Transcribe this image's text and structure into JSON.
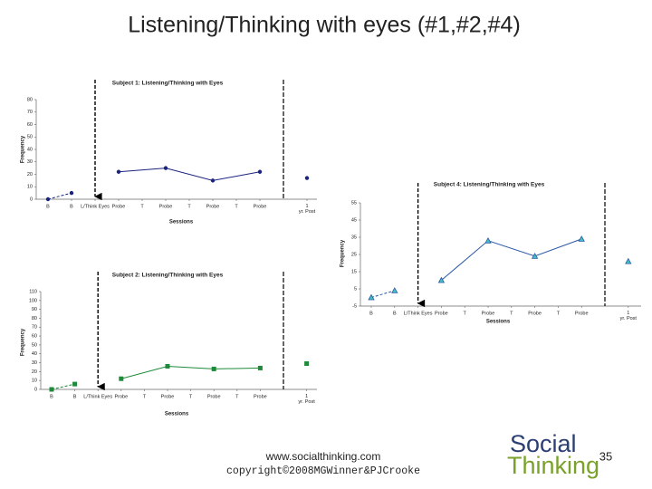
{
  "title": "Listening/Thinking with eyes (#1,#2,#4)",
  "footer": {
    "website": "www.socialthinking.com",
    "copyright": "copyright©2008MGWinner&PJCrooke",
    "page": "35",
    "logo_top": "Social",
    "logo_bottom": "Thinking"
  },
  "chart_data": [
    {
      "type": "line",
      "title": "Subject 1: Listening/Thinking with Eyes",
      "x_label": "Sessions",
      "y_label": "Frequency",
      "xlim": [
        1,
        12
      ],
      "ylim": [
        0,
        80
      ],
      "yticks": [
        0,
        10,
        20,
        30,
        40,
        50,
        60,
        70,
        80
      ],
      "xticks": [
        {
          "value": 1,
          "label": "B"
        },
        {
          "value": 2,
          "label": "B"
        },
        {
          "value": 3,
          "label": "L/Think Eyes"
        },
        {
          "value": 4,
          "label": "Probe"
        },
        {
          "value": 5,
          "label": "T"
        },
        {
          "value": 6,
          "label": "Probe"
        },
        {
          "value": 7,
          "label": "T"
        },
        {
          "value": 8,
          "label": "Probe"
        },
        {
          "value": 9,
          "label": "T"
        },
        {
          "value": 10,
          "label": "Probe"
        },
        {
          "value": 12,
          "label": "1 yr. Post"
        }
      ],
      "arrow_x": 3,
      "phase_line_x": 11,
      "marker": "circle",
      "series": [
        {
          "color": "#1a237e",
          "dashed": true,
          "x": [
            1,
            2
          ],
          "values": [
            0,
            5
          ]
        },
        {
          "color": "#1a237e",
          "dashed": false,
          "x": [
            4,
            6,
            8,
            10
          ],
          "values": [
            22,
            25,
            15,
            22
          ]
        },
        {
          "color": "#1a237e",
          "dashed": false,
          "x": [
            12
          ],
          "values": [
            17
          ]
        }
      ]
    },
    {
      "type": "line",
      "title": "Subject 4: Listening/Thinking with Eyes",
      "x_label": "Sessions",
      "y_label": "Frequency",
      "xlim": [
        1,
        12
      ],
      "ylim": [
        -5,
        55
      ],
      "yticks": [
        -5,
        5,
        15,
        25,
        35,
        45,
        55
      ],
      "xticks": [
        {
          "value": 1,
          "label": "B"
        },
        {
          "value": 2,
          "label": "B"
        },
        {
          "value": 3,
          "label": "L/Think Eyes"
        },
        {
          "value": 4,
          "label": "Probe"
        },
        {
          "value": 5,
          "label": "T"
        },
        {
          "value": 6,
          "label": "Probe"
        },
        {
          "value": 7,
          "label": "T"
        },
        {
          "value": 8,
          "label": "Probe"
        },
        {
          "value": 9,
          "label": "T"
        },
        {
          "value": 10,
          "label": "Probe"
        },
        {
          "value": 12,
          "label": "1 yr. Post"
        }
      ],
      "arrow_x": 3,
      "phase_line_x": 11,
      "marker": "triangle",
      "series": [
        {
          "color": "#2a58a8",
          "dashed": true,
          "x": [
            1,
            2
          ],
          "values": [
            0,
            4
          ]
        },
        {
          "color": "#2a58a8",
          "dashed": false,
          "x": [
            4,
            6,
            8,
            10
          ],
          "values": [
            10,
            33,
            24,
            34
          ]
        },
        {
          "color": "#2a58a8",
          "dashed": false,
          "x": [
            12
          ],
          "values": [
            21
          ]
        }
      ]
    },
    {
      "type": "line",
      "title": "Subject 2: Listening/Thinking with Eyes",
      "x_label": "Sessions",
      "y_label": "Frequency",
      "xlim": [
        1,
        12
      ],
      "ylim": [
        0,
        110
      ],
      "yticks": [
        0,
        10,
        20,
        30,
        40,
        50,
        60,
        70,
        80,
        90,
        100,
        110
      ],
      "xticks": [
        {
          "value": 1,
          "label": "B"
        },
        {
          "value": 2,
          "label": "B"
        },
        {
          "value": 3,
          "label": "L/Think Eyes"
        },
        {
          "value": 4,
          "label": "Probe"
        },
        {
          "value": 5,
          "label": "T"
        },
        {
          "value": 6,
          "label": "Probe"
        },
        {
          "value": 7,
          "label": "T"
        },
        {
          "value": 8,
          "label": "Probe"
        },
        {
          "value": 9,
          "label": "T"
        },
        {
          "value": 10,
          "label": "Probe"
        },
        {
          "value": 12,
          "label": "1 yr. Post"
        }
      ],
      "arrow_x": 3,
      "phase_line_x": 11,
      "marker": "square",
      "series": [
        {
          "color": "#1e8a3a",
          "dashed": true,
          "x": [
            1,
            2
          ],
          "values": [
            0,
            6
          ]
        },
        {
          "color": "#1e8a3a",
          "dashed": false,
          "x": [
            4,
            6,
            8,
            10
          ],
          "values": [
            12,
            26,
            23,
            24
          ]
        },
        {
          "color": "#1e8a3a",
          "dashed": false,
          "x": [
            12
          ],
          "values": [
            29
          ]
        }
      ]
    }
  ]
}
